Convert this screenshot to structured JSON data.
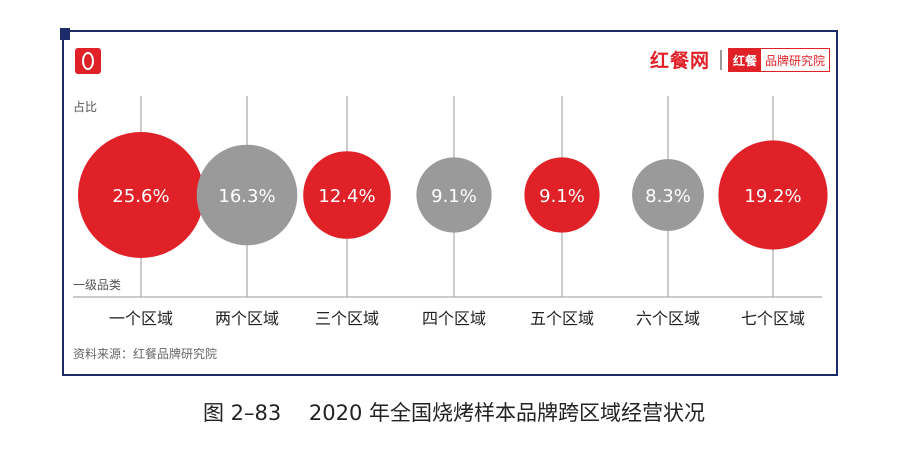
{
  "brand": {
    "main": "红餐网",
    "badge_red": "红餐",
    "badge_rest": "品牌研究院"
  },
  "source": "资料来源：红餐品牌研究院",
  "caption": "图 2–83　 2020 年全国烧烤样本品牌跨区域经营状况",
  "colors": {
    "red": "#e02128",
    "gray": "#9a9a9a",
    "frame": "#1d2b6b"
  },
  "chart_data": {
    "type": "bubble",
    "ylabel": "占比",
    "xlabel": "一级品类",
    "categories": [
      "一个区域",
      "两个区域",
      "三个区域",
      "四个区域",
      "五个区域",
      "六个区域",
      "七个区域"
    ],
    "values": [
      25.6,
      16.3,
      12.4,
      9.1,
      9.1,
      8.3,
      19.2
    ],
    "labels": [
      "25.6%",
      "16.3%",
      "12.4%",
      "9.1%",
      "9.1%",
      "8.3%",
      "19.2%"
    ],
    "bubble_colors": [
      "red",
      "gray",
      "red",
      "gray",
      "red",
      "gray",
      "red"
    ],
    "grid": true
  }
}
